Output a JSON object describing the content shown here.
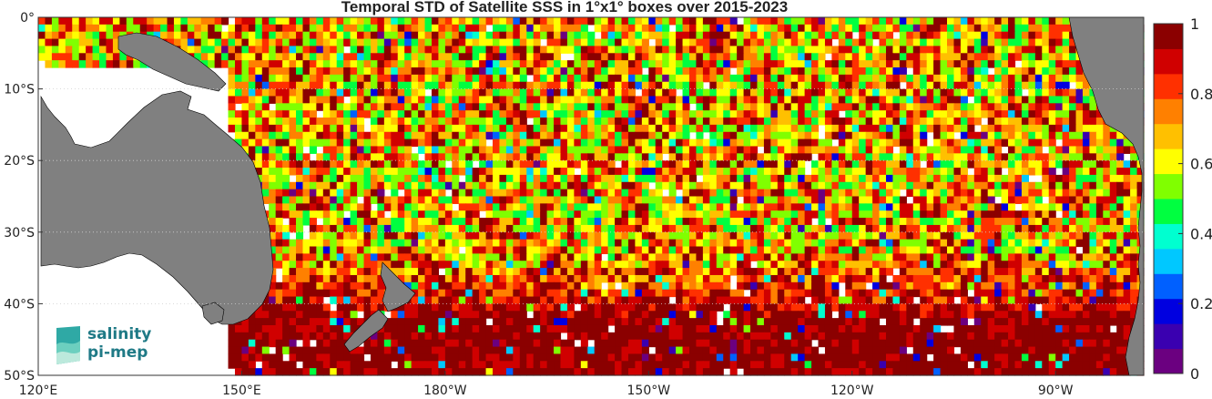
{
  "title": "Temporal STD of Satellite SSS in 1°x1° boxes over 2015-2023",
  "map": {
    "lon_range": [
      120,
      283
    ],
    "lat_range": [
      -50,
      0
    ],
    "x_ticks": [
      {
        "lon": 120,
        "label": "120°E"
      },
      {
        "lon": 150,
        "label": "150°E"
      },
      {
        "lon": 180,
        "label": "180°W"
      },
      {
        "lon": 210,
        "label": "150°W"
      },
      {
        "lon": 240,
        "label": "120°W"
      },
      {
        "lon": 270,
        "label": "90°W"
      }
    ],
    "y_ticks": [
      {
        "lat": 0,
        "label": "0°"
      },
      {
        "lat": -10,
        "label": "10°S"
      },
      {
        "lat": -20,
        "label": "20°S"
      },
      {
        "lat": -30,
        "label": "30°S"
      },
      {
        "lat": -40,
        "label": "40°S"
      },
      {
        "lat": -50,
        "label": "50°S"
      }
    ],
    "land_color": "#808080",
    "grid_lines": "dotted"
  },
  "colorbar": {
    "min": 0,
    "max": 1,
    "ticks": [
      "0",
      "0.2",
      "0.4",
      "0.6",
      "0.8",
      "1"
    ],
    "colors": [
      "#6b0080",
      "#3a00b0",
      "#0000e0",
      "#0060ff",
      "#00c8ff",
      "#00ffd0",
      "#00ff40",
      "#80ff00",
      "#ffff00",
      "#ffc000",
      "#ff8000",
      "#ff3000",
      "#d00000",
      "#8b0000"
    ]
  },
  "logo": {
    "line1": "salinity",
    "line2": "pi-mep"
  }
}
